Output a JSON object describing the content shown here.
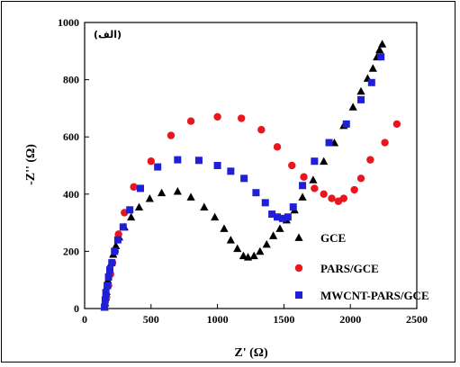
{
  "panel_label": "(الف)",
  "chart_data": {
    "type": "scatter",
    "xlabel": "Z' (Ω)",
    "ylabel": "-Z'' (Ω)",
    "xlim": [
      0,
      2500
    ],
    "ylim": [
      0,
      1000
    ],
    "x_ticks": [
      0,
      500,
      1000,
      1500,
      2000,
      2500
    ],
    "y_ticks": [
      0,
      200,
      400,
      600,
      800,
      1000
    ],
    "grid": false,
    "legend_position": "bottom-right",
    "series": [
      {
        "name": "GCE",
        "marker": "triangle",
        "color": "#000000",
        "points": [
          [
            150,
            5
          ],
          [
            155,
            20
          ],
          [
            160,
            40
          ],
          [
            165,
            60
          ],
          [
            170,
            80
          ],
          [
            175,
            100
          ],
          [
            185,
            130
          ],
          [
            200,
            160
          ],
          [
            215,
            190
          ],
          [
            235,
            220
          ],
          [
            260,
            250
          ],
          [
            300,
            285
          ],
          [
            350,
            320
          ],
          [
            410,
            355
          ],
          [
            490,
            385
          ],
          [
            580,
            405
          ],
          [
            700,
            410
          ],
          [
            800,
            390
          ],
          [
            900,
            355
          ],
          [
            980,
            320
          ],
          [
            1050,
            280
          ],
          [
            1100,
            240
          ],
          [
            1150,
            210
          ],
          [
            1195,
            185
          ],
          [
            1230,
            180
          ],
          [
            1275,
            185
          ],
          [
            1320,
            200
          ],
          [
            1370,
            225
          ],
          [
            1420,
            255
          ],
          [
            1470,
            280
          ],
          [
            1520,
            310
          ],
          [
            1580,
            345
          ],
          [
            1640,
            390
          ],
          [
            1720,
            450
          ],
          [
            1800,
            515
          ],
          [
            1880,
            580
          ],
          [
            1950,
            640
          ],
          [
            2020,
            705
          ],
          [
            2080,
            760
          ],
          [
            2130,
            805
          ],
          [
            2170,
            840
          ],
          [
            2200,
            880
          ],
          [
            2220,
            905
          ],
          [
            2240,
            925
          ]
        ]
      },
      {
        "name": "PARS/GCE",
        "marker": "circle",
        "color": "#e8171d",
        "points": [
          [
            150,
            10
          ],
          [
            165,
            40
          ],
          [
            180,
            80
          ],
          [
            195,
            120
          ],
          [
            210,
            160
          ],
          [
            230,
            200
          ],
          [
            255,
            260
          ],
          [
            300,
            335
          ],
          [
            370,
            425
          ],
          [
            500,
            515
          ],
          [
            650,
            605
          ],
          [
            800,
            655
          ],
          [
            1000,
            670
          ],
          [
            1180,
            665
          ],
          [
            1330,
            625
          ],
          [
            1450,
            565
          ],
          [
            1560,
            500
          ],
          [
            1650,
            460
          ],
          [
            1730,
            420
          ],
          [
            1800,
            400
          ],
          [
            1860,
            385
          ],
          [
            1910,
            375
          ],
          [
            1950,
            385
          ],
          [
            2030,
            415
          ],
          [
            2080,
            455
          ],
          [
            2150,
            520
          ],
          [
            2260,
            580
          ],
          [
            2350,
            645
          ]
        ]
      },
      {
        "name": "MWCNT-PARS/GCE",
        "marker": "square",
        "color": "#1f1fd6",
        "points": [
          [
            150,
            5
          ],
          [
            155,
            30
          ],
          [
            160,
            55
          ],
          [
            170,
            80
          ],
          [
            180,
            110
          ],
          [
            190,
            135
          ],
          [
            205,
            160
          ],
          [
            225,
            200
          ],
          [
            250,
            240
          ],
          [
            290,
            285
          ],
          [
            340,
            345
          ],
          [
            420,
            420
          ],
          [
            550,
            495
          ],
          [
            700,
            520
          ],
          [
            860,
            518
          ],
          [
            1000,
            500
          ],
          [
            1100,
            480
          ],
          [
            1200,
            455
          ],
          [
            1290,
            405
          ],
          [
            1360,
            370
          ],
          [
            1410,
            330
          ],
          [
            1450,
            320
          ],
          [
            1490,
            315
          ],
          [
            1530,
            320
          ],
          [
            1570,
            355
          ],
          [
            1640,
            430
          ],
          [
            1730,
            515
          ],
          [
            1840,
            580
          ],
          [
            1970,
            645
          ],
          [
            2080,
            730
          ],
          [
            2160,
            790
          ],
          [
            2230,
            880
          ]
        ]
      }
    ]
  }
}
